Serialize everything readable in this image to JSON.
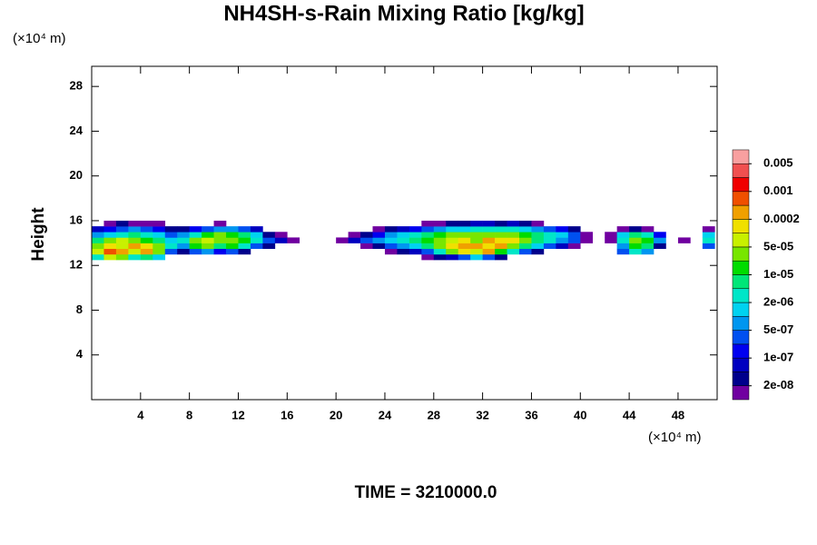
{
  "chart_data": {
    "type": "contour",
    "title": "NH4SH-s-Rain Mixing Ratio [kg/kg]",
    "ylabel": "Height",
    "x_unit": "(×10⁴ m)",
    "y_unit": "(×10⁴ m)",
    "footer": "TIME = 3210000.0",
    "xlim": [
      0,
      51.2
    ],
    "ylim": [
      0,
      29.8
    ],
    "xticks": [
      4,
      8,
      12,
      16,
      20,
      24,
      28,
      32,
      36,
      40,
      44,
      48
    ],
    "yticks": [
      4,
      8,
      12,
      16,
      20,
      24,
      28
    ],
    "colorbar": {
      "levels": [
        {
          "value": 2e-08,
          "label": "2e-08"
        },
        {
          "value": 1e-07,
          "label": "1e-07"
        },
        {
          "value": 5e-07,
          "label": "5e-07"
        },
        {
          "value": 2e-06,
          "label": "2e-06"
        },
        {
          "value": 1e-05,
          "label": "1e-05"
        },
        {
          "value": 5e-05,
          "label": "5e-05"
        },
        0.0002,
        0.001,
        0.005
      ],
      "colors": [
        "#7000a0",
        "#00008c",
        "#0000c0",
        "#0000f0",
        "#0050f0",
        "#0096f0",
        "#00d2f0",
        "#00e6c8",
        "#00e678",
        "#00dc00",
        "#78e600",
        "#c8f000",
        "#f0e000",
        "#f0a000",
        "#f05000",
        "#f00000",
        "#f05050",
        "#f8a0a0"
      ]
    },
    "x": [
      0.5,
      1.5,
      2.5,
      3.5,
      4.5,
      5.5,
      6.5,
      7.5,
      8.5,
      9.5,
      10.5,
      11.5,
      12.5,
      13.5,
      14.5,
      15.5,
      16.5,
      17.5,
      18.5,
      19.5,
      20.5,
      21.5,
      22.5,
      23.5,
      24.5,
      25.5,
      26.5,
      27.5,
      28.5,
      29.5,
      30.5,
      31.5,
      32.5,
      33.5,
      34.5,
      35.5,
      36.5,
      37.5,
      38.5,
      39.5,
      40.5,
      41.5,
      42.5,
      43.5,
      44.5,
      45.5,
      46.5,
      47.5,
      48.5,
      49.5,
      50.5
    ],
    "y": [
      12.75,
      13.25,
      13.75,
      14.25,
      14.75,
      15.25,
      15.75
    ],
    "z": [
      [
        3e-06,
        7e-05,
        3e-05,
        3e-06,
        7e-06,
        1.5e-06,
        null,
        null,
        null,
        null,
        null,
        null,
        null,
        null,
        null,
        null,
        null,
        null,
        null,
        null,
        null,
        null,
        null,
        null,
        null,
        null,
        null,
        1e-08,
        3e-08,
        6e-08,
        3e-07,
        1.5e-06,
        3e-07,
        3e-08,
        null,
        null,
        null,
        null,
        null,
        null,
        null,
        null,
        null,
        null,
        null,
        null,
        null,
        null,
        null,
        null,
        null
      ],
      [
        7e-05,
        0.0007,
        0.0003,
        7e-05,
        0.0003,
        3e-05,
        3e-07,
        3e-08,
        3e-07,
        7e-07,
        1.5e-07,
        3e-07,
        3e-08,
        null,
        null,
        null,
        null,
        null,
        null,
        null,
        null,
        null,
        null,
        null,
        1e-08,
        3e-08,
        6e-08,
        3e-07,
        3e-06,
        3e-05,
        0.00015,
        7e-05,
        0.0003,
        1.5e-05,
        3e-06,
        3e-07,
        3e-08,
        null,
        null,
        null,
        null,
        null,
        null,
        3e-07,
        3e-06,
        7e-07,
        null,
        null,
        null,
        null,
        null
      ],
      [
        3e-05,
        0.00015,
        7e-05,
        0.0003,
        0.00015,
        3e-05,
        3e-06,
        7e-07,
        1.5e-05,
        3e-05,
        7e-06,
        1.5e-05,
        3e-06,
        3e-07,
        3e-08,
        null,
        null,
        null,
        null,
        null,
        null,
        null,
        1e-08,
        3e-08,
        3e-07,
        7e-07,
        1.5e-06,
        7e-06,
        3e-05,
        0.00015,
        0.0003,
        0.0003,
        0.00015,
        0.0003,
        3e-05,
        7e-06,
        1.5e-06,
        3e-07,
        6e-08,
        1e-08,
        null,
        null,
        null,
        7e-07,
        1.5e-05,
        7e-06,
        3e-08,
        null,
        null,
        null,
        3e-07
      ],
      [
        7e-06,
        3e-05,
        7e-05,
        3e-05,
        1.5e-05,
        7e-06,
        1.5e-06,
        3e-06,
        3e-05,
        7e-05,
        3e-05,
        3e-05,
        1.5e-05,
        3e-06,
        3e-07,
        6e-08,
        1e-08,
        null,
        null,
        null,
        1e-08,
        6e-08,
        3e-07,
        7e-07,
        1.5e-06,
        3e-06,
        7e-06,
        1.5e-05,
        3e-05,
        7e-05,
        0.00015,
        3e-05,
        0.0003,
        0.00015,
        0.00015,
        3e-05,
        7e-06,
        3e-06,
        7e-07,
        3e-07,
        1e-08,
        null,
        1e-08,
        3e-06,
        3e-05,
        1.5e-05,
        7e-07,
        null,
        1e-08,
        null,
        3e-06
      ],
      [
        7e-07,
        1.5e-06,
        3e-06,
        7e-06,
        3e-06,
        1.5e-06,
        3e-07,
        7e-07,
        3e-06,
        1.5e-05,
        3e-05,
        1.5e-05,
        7e-06,
        1.5e-06,
        3e-08,
        1e-08,
        null,
        null,
        null,
        null,
        null,
        1e-08,
        3e-08,
        1.5e-07,
        7e-07,
        1.5e-06,
        3e-06,
        7e-06,
        1.5e-05,
        3e-05,
        3e-05,
        3e-05,
        3e-05,
        3e-05,
        3e-05,
        1.5e-05,
        7e-06,
        3e-06,
        1.5e-06,
        3e-07,
        1e-08,
        null,
        1e-08,
        1.5e-06,
        7e-06,
        3e-06,
        1.5e-07,
        null,
        null,
        null,
        1.5e-06
      ],
      [
        6e-08,
        1.5e-07,
        3e-07,
        7e-07,
        3e-07,
        1.5e-07,
        3e-08,
        3e-08,
        1.5e-07,
        3e-07,
        7e-07,
        7e-07,
        3e-07,
        6e-08,
        null,
        null,
        null,
        null,
        null,
        null,
        null,
        null,
        null,
        1e-08,
        3e-08,
        6e-08,
        1.5e-07,
        3e-07,
        7e-07,
        1.5e-06,
        1.5e-06,
        3e-06,
        3e-06,
        3e-06,
        3e-06,
        1.5e-06,
        7e-07,
        3e-07,
        1.5e-07,
        3e-08,
        null,
        null,
        null,
        1e-08,
        3e-08,
        1e-08,
        null,
        null,
        null,
        null,
        1e-08
      ],
      [
        null,
        1e-08,
        3e-08,
        1e-08,
        1e-08,
        1e-08,
        null,
        null,
        null,
        null,
        1e-08,
        null,
        null,
        null,
        null,
        null,
        null,
        null,
        null,
        null,
        null,
        null,
        null,
        null,
        null,
        null,
        null,
        1e-08,
        1e-08,
        3e-08,
        3e-08,
        6e-08,
        6e-08,
        3e-08,
        6e-08,
        3e-08,
        1e-08,
        null,
        null,
        null,
        null,
        null,
        null,
        null,
        null,
        null,
        null,
        null,
        null,
        null,
        null
      ]
    ]
  }
}
